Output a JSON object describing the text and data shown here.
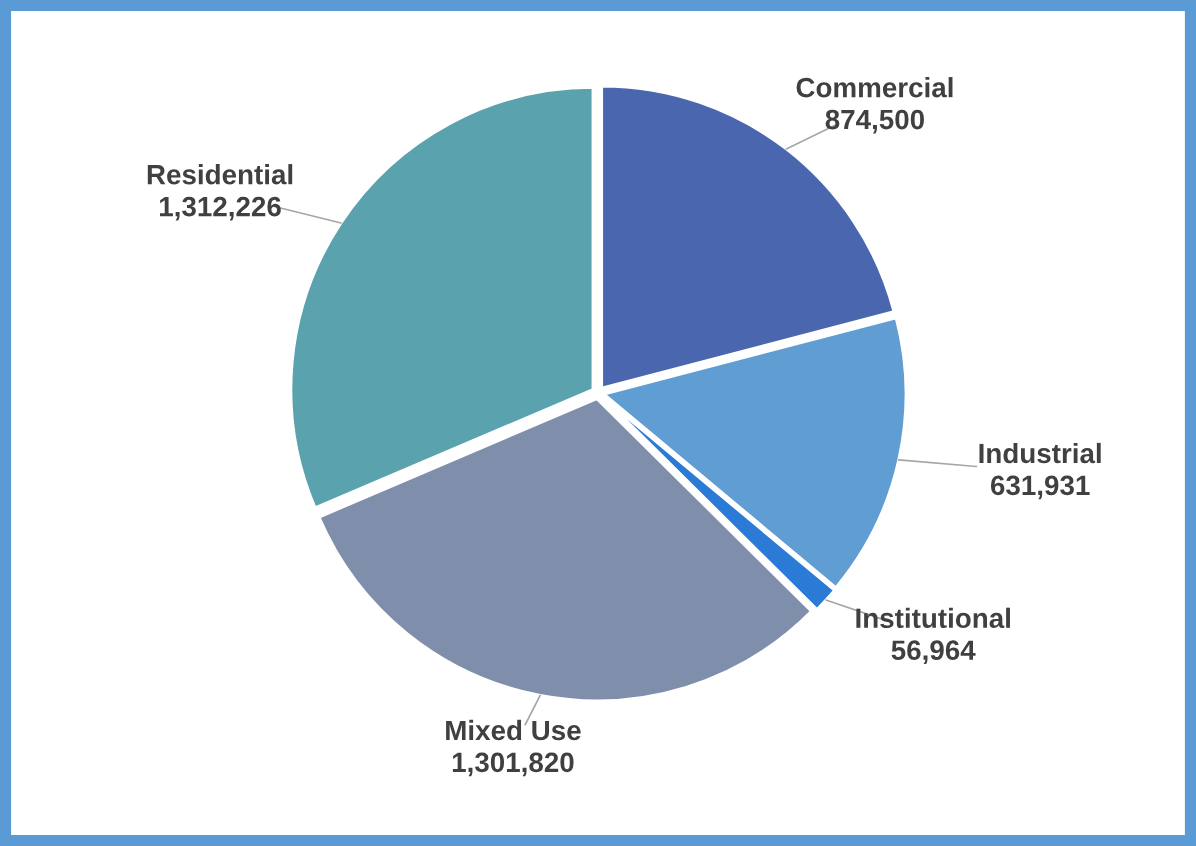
{
  "chart_data": {
    "type": "pie",
    "categories": [
      "Commercial",
      "Industrial",
      "Institutional",
      "Mixed Use",
      "Residential"
    ],
    "values": [
      874500,
      631931,
      56964,
      1301820,
      1312226
    ],
    "colors": [
      "#4a66ae",
      "#5f9dd3",
      "#2a7ad6",
      "#7f8fab",
      "#5aa2ae"
    ],
    "value_labels": [
      "874,500",
      "631,931",
      "56,964",
      "1,301,820",
      "1,312,226"
    ],
    "legend": false
  }
}
